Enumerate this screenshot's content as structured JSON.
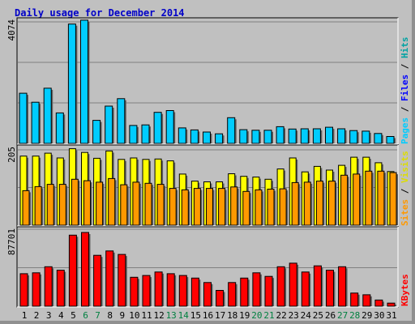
{
  "chart_data": {
    "type": "bar",
    "title": "Daily usage for December 2014",
    "categories": [
      "1",
      "2",
      "3",
      "4",
      "5",
      "6",
      "7",
      "8",
      "9",
      "10",
      "11",
      "12",
      "13",
      "14",
      "15",
      "16",
      "17",
      "18",
      "19",
      "20",
      "21",
      "22",
      "23",
      "24",
      "25",
      "26",
      "27",
      "28",
      "29",
      "30",
      "31"
    ],
    "weekend_days": [
      "6",
      "7",
      "13",
      "14",
      "20",
      "21",
      "27",
      "28"
    ],
    "panels": [
      {
        "name": "hits-files",
        "ymax_label": "4074",
        "ymax": 4074,
        "legend": {
          "pages": "Pages",
          "sep1": " / ",
          "files": "Files",
          "sep2": " / ",
          "hits": "Hits"
        },
        "series": [
          {
            "name": "Hits",
            "color": "#00a2a2",
            "values": [
              0,
              0,
              0,
              0,
              0,
              0,
              0,
              0,
              0,
              0,
              0,
              0,
              0,
              0,
              0,
              0,
              0,
              0,
              0,
              0,
              0,
              0,
              0,
              0,
              0,
              0,
              0,
              0,
              0,
              0,
              0
            ]
          },
          {
            "name": "Files",
            "color": "#00ccff",
            "values": [
              1680,
              1380,
              1850,
              1020,
              4000,
              4130,
              770,
              1250,
              1500,
              600,
              620,
              1040,
              1100,
              520,
              450,
              380,
              320,
              860,
              460,
              440,
              440,
              560,
              480,
              490,
              490,
              540,
              490,
              430,
              410,
              330,
              230
            ]
          },
          {
            "name": "Pages",
            "color": "#0000ff",
            "values": [
              0,
              0,
              0,
              0,
              0,
              0,
              0,
              0,
              0,
              0,
              0,
              0,
              0,
              0,
              0,
              0,
              0,
              0,
              0,
              0,
              0,
              0,
              0,
              0,
              0,
              0,
              0,
              0,
              0,
              0,
              0
            ]
          }
        ]
      },
      {
        "name": "visits-sites",
        "ymax_label": "205",
        "ymax": 205,
        "legend": {
          "sites": "Sites",
          "sep": " / ",
          "visits": "Visits"
        },
        "series": [
          {
            "name": "Visits",
            "color": "#ffff00",
            "values": [
              188,
              188,
              196,
              183,
              208,
              198,
              182,
              202,
              179,
              183,
              179,
              180,
              175,
              139,
              120,
              118,
              118,
              140,
              133,
              131,
              125,
              153,
              183,
              145,
              160,
              150,
              163,
              185,
              185,
              170,
              146
            ]
          },
          {
            "name": "Sites",
            "color": "#ff9900",
            "values": [
              94,
              105,
              111,
              111,
              125,
              121,
              117,
              127,
              110,
              117,
              114,
              111,
              100,
              96,
              100,
              100,
              100,
              104,
              92,
              96,
              98,
              99,
              116,
              117,
              120,
              120,
              136,
              139,
              147,
              147,
              143
            ]
          }
        ]
      },
      {
        "name": "kbytes",
        "ymax_label": "87701",
        "ymax": 87701,
        "legend": {
          "kbytes": "KBytes"
        },
        "series": [
          {
            "name": "KBytes",
            "color": "#ff0000",
            "values": [
              37000,
              38000,
              45000,
              41000,
              81000,
              84000,
              58000,
              63000,
              59000,
              33000,
              35000,
              39000,
              37000,
              35000,
              32000,
              27000,
              18000,
              27000,
              32000,
              38000,
              34000,
              45000,
              49000,
              39000,
              46000,
              41000,
              45000,
              15000,
              13000,
              7000,
              3500
            ]
          }
        ]
      }
    ]
  }
}
